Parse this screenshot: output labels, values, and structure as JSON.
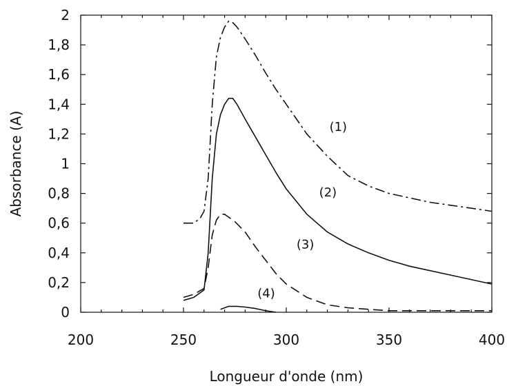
{
  "chart_data": {
    "type": "line",
    "title": "",
    "xlabel": "Longueur d'onde (nm)",
    "ylabel": "Absorbance (A)",
    "xlim": [
      200,
      400
    ],
    "ylim": [
      0,
      2
    ],
    "grid": false,
    "legend": "none",
    "x_ticks": [
      200,
      250,
      300,
      350,
      400
    ],
    "x_tick_labels": [
      "200",
      "250",
      "300",
      "350",
      "400"
    ],
    "y_ticks": [
      0,
      0.2,
      0.4,
      0.6,
      0.8,
      1,
      1.2,
      1.4,
      1.6,
      1.8,
      2
    ],
    "y_tick_labels": [
      "0",
      "0,2",
      "0,4",
      "0,6",
      "0,8",
      "1",
      "1,2",
      "1,4",
      "1,6",
      "1,8",
      "2"
    ],
    "series": [
      {
        "label": "(1)",
        "label_at": [
          321,
          1.22
        ],
        "color": "#111111",
        "style": "dashdot",
        "x": [
          250,
          255,
          258,
          260,
          262,
          264,
          266,
          268,
          270,
          272,
          274,
          276,
          280,
          285,
          290,
          295,
          300,
          310,
          320,
          330,
          340,
          350,
          360,
          370,
          380,
          390,
          400
        ],
        "y": [
          0.6,
          0.6,
          0.63,
          0.68,
          0.9,
          1.4,
          1.72,
          1.85,
          1.92,
          1.96,
          1.95,
          1.92,
          1.84,
          1.73,
          1.61,
          1.5,
          1.4,
          1.2,
          1.05,
          0.92,
          0.85,
          0.8,
          0.77,
          0.74,
          0.72,
          0.7,
          0.68
        ]
      },
      {
        "label": "(2)",
        "label_at": [
          316,
          0.78
        ],
        "color": "#111111",
        "style": "solid",
        "x": [
          250,
          255,
          260,
          262,
          264,
          266,
          268,
          270,
          272,
          274,
          276,
          280,
          285,
          290,
          295,
          300,
          310,
          320,
          330,
          340,
          350,
          360,
          370,
          380,
          390,
          400
        ],
        "y": [
          0.08,
          0.1,
          0.15,
          0.4,
          0.9,
          1.2,
          1.33,
          1.4,
          1.44,
          1.44,
          1.4,
          1.3,
          1.18,
          1.06,
          0.94,
          0.83,
          0.66,
          0.54,
          0.46,
          0.4,
          0.35,
          0.31,
          0.28,
          0.25,
          0.22,
          0.19
        ]
      },
      {
        "label": "(3)",
        "label_at": [
          305,
          0.43
        ],
        "color": "#111111",
        "style": "dashed",
        "x": [
          250,
          255,
          260,
          262,
          264,
          266,
          268,
          270,
          272,
          275,
          280,
          285,
          290,
          295,
          300,
          310,
          320,
          330,
          340,
          350,
          360,
          370,
          380,
          390,
          400
        ],
        "y": [
          0.1,
          0.12,
          0.16,
          0.3,
          0.52,
          0.62,
          0.66,
          0.66,
          0.64,
          0.61,
          0.54,
          0.44,
          0.35,
          0.26,
          0.19,
          0.1,
          0.05,
          0.03,
          0.02,
          0.01,
          0.01,
          0.01,
          0.01,
          0.01,
          0.01
        ]
      },
      {
        "label": "(4)",
        "label_at": [
          286,
          0.1
        ],
        "color": "#111111",
        "style": "solid",
        "x": [
          268,
          272,
          276,
          280,
          285,
          290,
          295
        ],
        "y": [
          0.02,
          0.04,
          0.04,
          0.035,
          0.025,
          0.01,
          0.0
        ]
      }
    ]
  }
}
